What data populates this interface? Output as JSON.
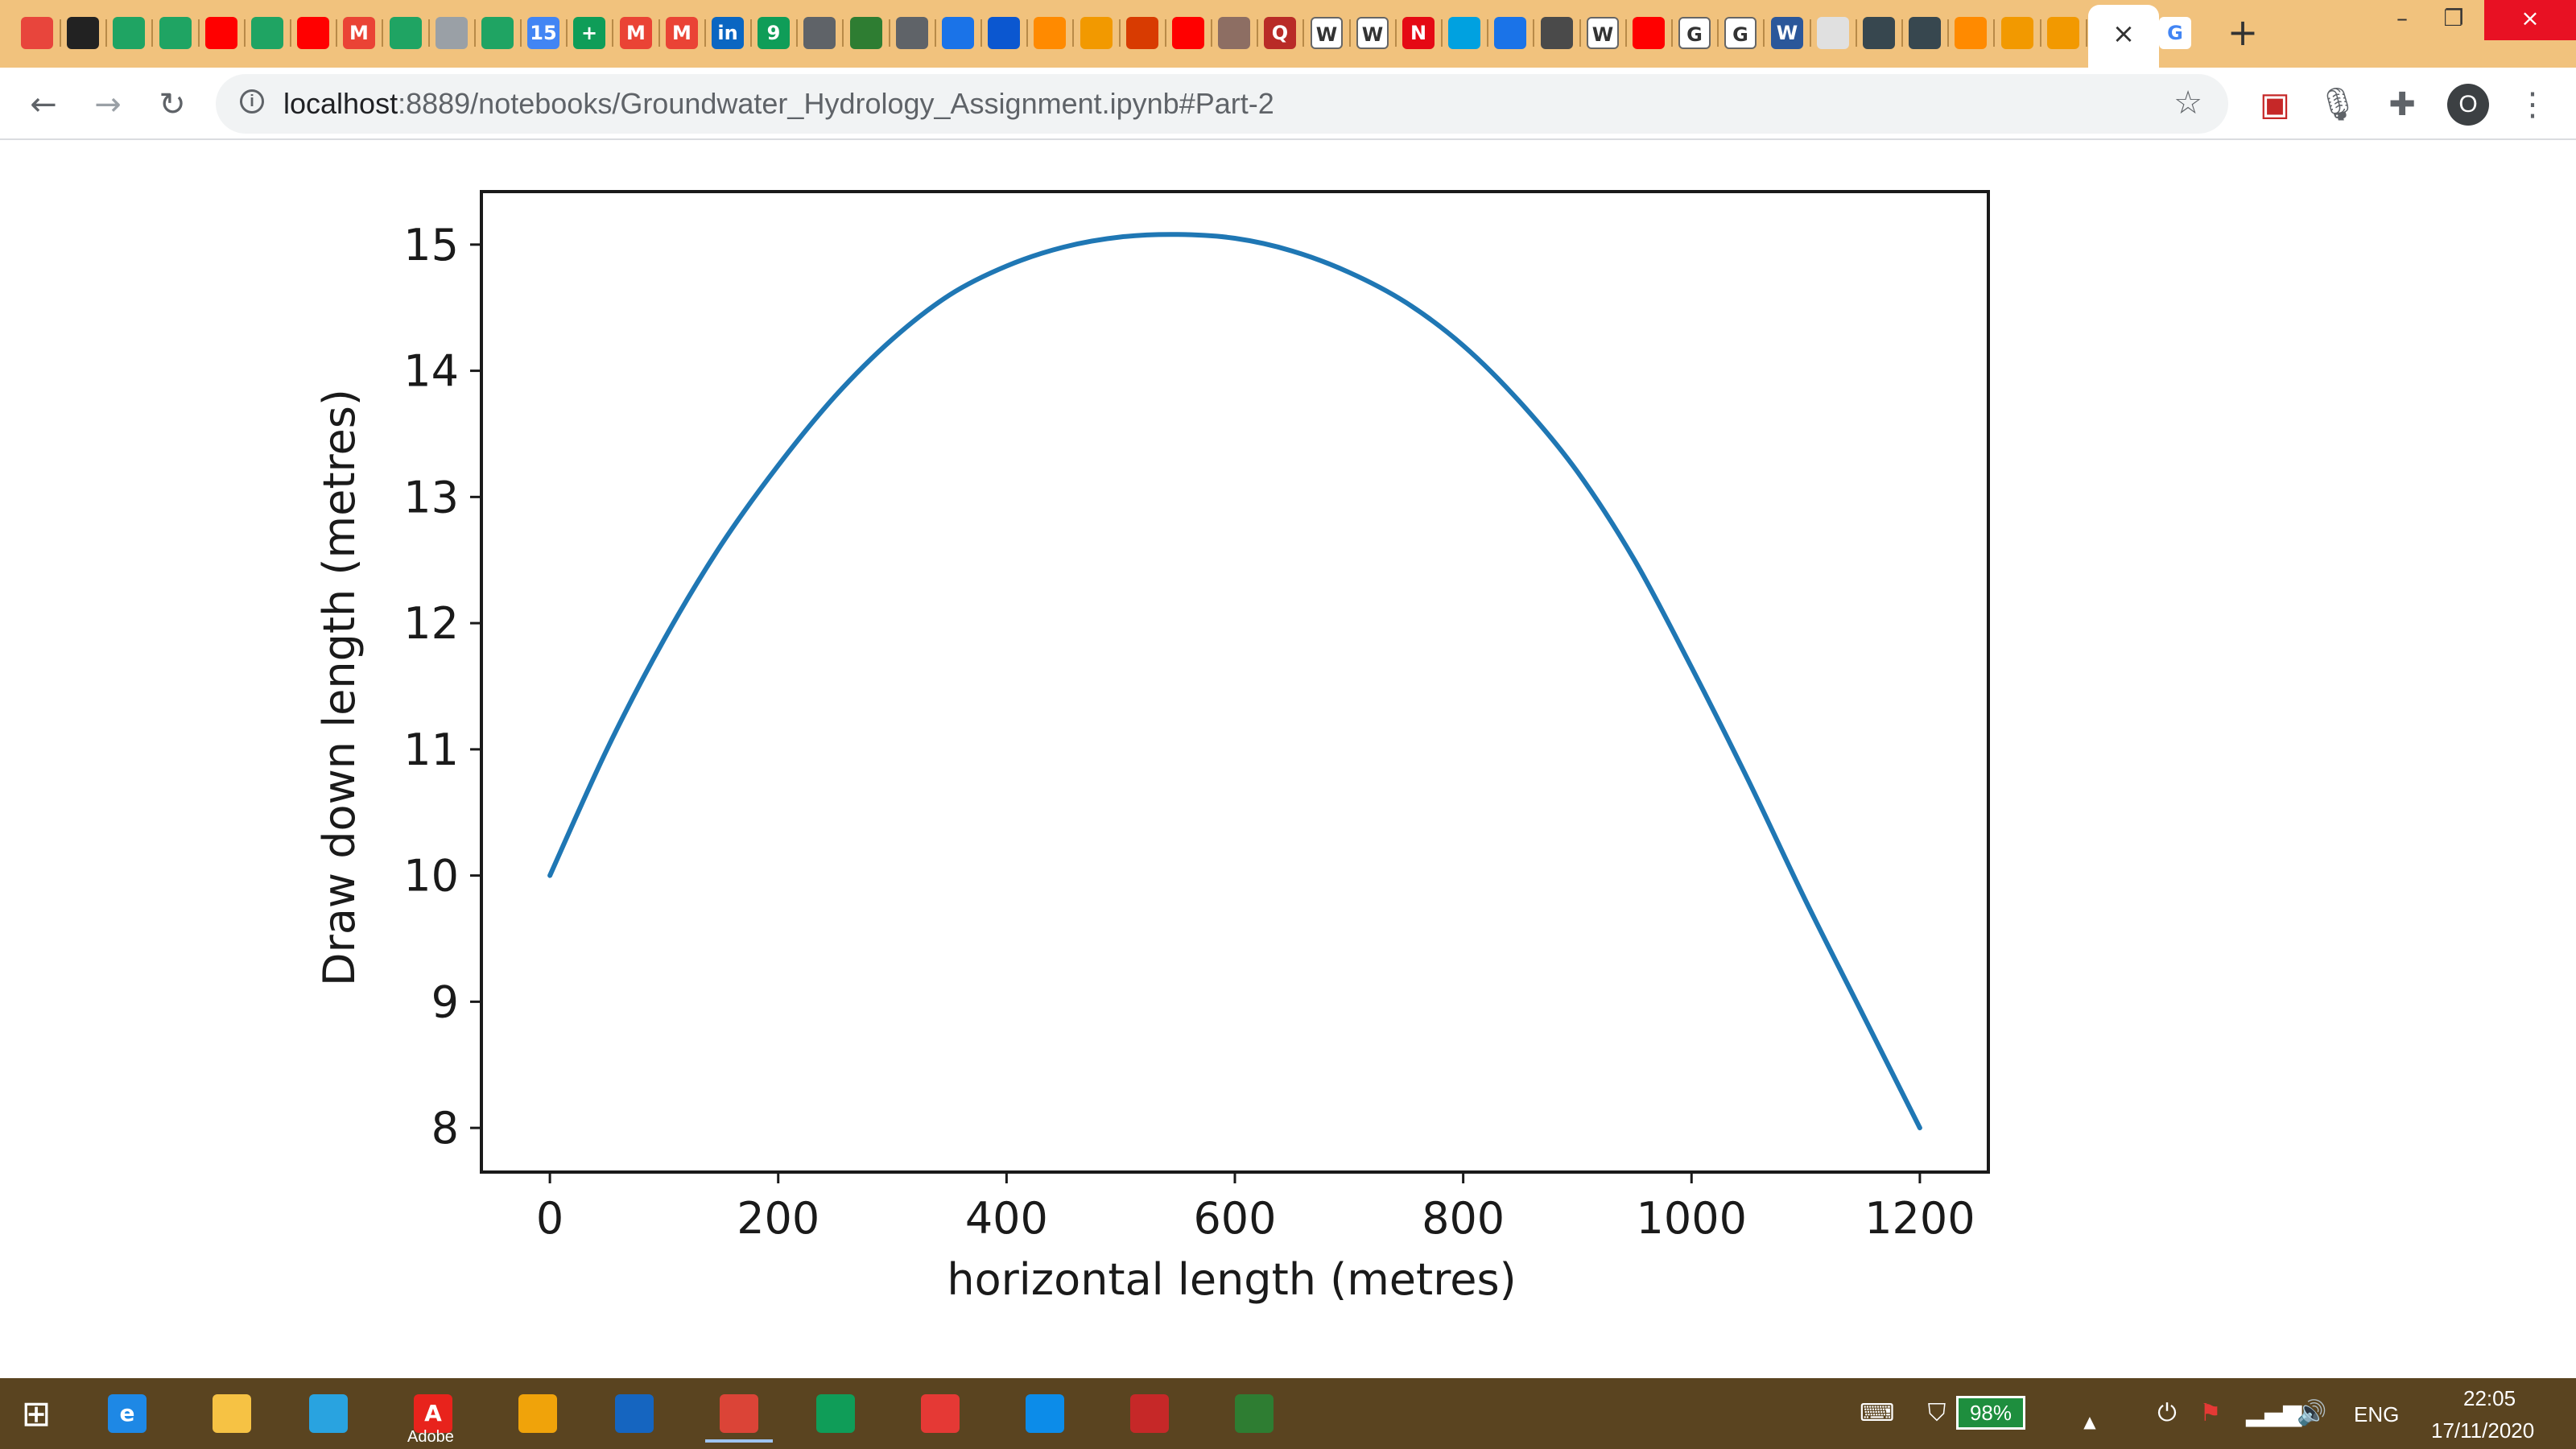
{
  "browser": {
    "active_tab": {
      "close_label": "×",
      "favicon": "google-g-icon",
      "favicon_text": "G"
    },
    "new_tab_label": "+",
    "url_host": "localhost",
    "url_path": ":8889/notebooks/Groundwater_Hydrology_Assignment.ipynb#Part-2",
    "profile_initial": "O",
    "window_controls": {
      "minimize": "–",
      "restore": "❐",
      "close": "×"
    },
    "tabs": [
      {
        "icon": "miro-icon",
        "text": "",
        "color": "#e8453c"
      },
      {
        "icon": "contact-card-icon",
        "text": "",
        "color": "#222222"
      },
      {
        "icon": "google-drive-icon",
        "text": "",
        "color": "#1fa463"
      },
      {
        "icon": "google-drive-icon",
        "text": "",
        "color": "#1fa463"
      },
      {
        "icon": "youtube-icon",
        "text": "",
        "color": "#ff0000"
      },
      {
        "icon": "google-drive-icon",
        "text": "",
        "color": "#1fa463"
      },
      {
        "icon": "youtube-icon",
        "text": "",
        "color": "#ff0000"
      },
      {
        "icon": "gmail-icon",
        "text": "M",
        "color": "#ea4335"
      },
      {
        "icon": "google-drive-icon",
        "text": "",
        "color": "#1fa463"
      },
      {
        "icon": "circle-logo-icon",
        "text": "",
        "color": "#9aa0a6"
      },
      {
        "icon": "google-drive-icon",
        "text": "",
        "color": "#1fa463"
      },
      {
        "icon": "google-calendar-icon",
        "text": "15",
        "color": "#4285f4"
      },
      {
        "icon": "google-sheets-icon",
        "text": "+",
        "color": "#0f9d58"
      },
      {
        "icon": "gmail-icon",
        "text": "M",
        "color": "#ea4335"
      },
      {
        "icon": "gmail-icon",
        "text": "M",
        "color": "#ea4335"
      },
      {
        "icon": "linkedin-icon",
        "text": "in",
        "color": "#0a66c2"
      },
      {
        "icon": "nine-badge-icon",
        "text": "9",
        "color": "#0f9d58"
      },
      {
        "icon": "globe-icon",
        "text": "",
        "color": "#5f6368"
      },
      {
        "icon": "chart-icon",
        "text": "",
        "color": "#2e7d32"
      },
      {
        "icon": "globe-icon",
        "text": "",
        "color": "#5f6368"
      },
      {
        "icon": "reader-icon",
        "text": "",
        "color": "#1a73e8"
      },
      {
        "icon": "play-circle-icon",
        "text": "",
        "color": "#0b57d0"
      },
      {
        "icon": "loading-arc-icon",
        "text": "",
        "color": "#ff8a00"
      },
      {
        "icon": "book-icon",
        "text": "",
        "color": "#f29900"
      },
      {
        "icon": "office-icon",
        "text": "",
        "color": "#d83b01"
      },
      {
        "icon": "youtube-icon",
        "text": "",
        "color": "#ff0000"
      },
      {
        "icon": "crest-icon",
        "text": "",
        "color": "#8d6e63"
      },
      {
        "icon": "quora-icon",
        "text": "Q",
        "color": "#b92b27"
      },
      {
        "icon": "wikipedia-icon",
        "text": "W",
        "color": "#ffffff"
      },
      {
        "icon": "wikipedia-icon",
        "text": "W",
        "color": "#ffffff"
      },
      {
        "icon": "netflix-icon",
        "text": "N",
        "color": "#e50914"
      },
      {
        "icon": "play-circle-icon",
        "text": "",
        "color": "#00a1e0"
      },
      {
        "icon": "document-icon",
        "text": "",
        "color": "#1a73e8"
      },
      {
        "icon": "crown-icon",
        "text": "",
        "color": "#4a4a4a"
      },
      {
        "icon": "wikipedia-icon",
        "text": "W",
        "color": "#ffffff"
      },
      {
        "icon": "youtube-icon",
        "text": "",
        "color": "#ff0000"
      },
      {
        "icon": "google-g-icon",
        "text": "G",
        "color": "#ffffff"
      },
      {
        "icon": "google-g-icon",
        "text": "G",
        "color": "#ffffff"
      },
      {
        "icon": "word-icon",
        "text": "W",
        "color": "#2b579a"
      },
      {
        "icon": "rainbow-icon",
        "text": "",
        "color": "#e0e0e0"
      },
      {
        "icon": "bird-icon",
        "text": "",
        "color": "#37474f"
      },
      {
        "icon": "globe-icon",
        "text": "",
        "color": "#37474f"
      },
      {
        "icon": "loading-arc-icon",
        "text": "",
        "color": "#ff8a00"
      },
      {
        "icon": "book-icon",
        "text": "",
        "color": "#f29900"
      },
      {
        "icon": "book-icon",
        "text": "",
        "color": "#f29900"
      }
    ]
  },
  "chart_data": {
    "type": "line",
    "title": "",
    "xlabel": "horizontal length (metres)",
    "ylabel": "Draw down length (metres)",
    "xlim": [
      -60,
      1260
    ],
    "ylim": [
      7.65,
      15.42
    ],
    "xticks": [
      0,
      200,
      400,
      600,
      800,
      1000,
      1200
    ],
    "yticks": [
      8,
      9,
      10,
      11,
      12,
      13,
      14,
      15
    ],
    "line_color": "#1f77b4",
    "grid": false,
    "series": [
      {
        "x": [
          0,
          50,
          100,
          150,
          200,
          250,
          300,
          350,
          400,
          450,
          500,
          550,
          600,
          650,
          700,
          750,
          800,
          850,
          900,
          950,
          1000,
          1050,
          1100,
          1150,
          1200
        ],
        "values": [
          10.0,
          11.0,
          11.87,
          12.62,
          13.25,
          13.8,
          14.25,
          14.6,
          14.83,
          14.98,
          15.06,
          15.08,
          15.05,
          14.95,
          14.78,
          14.54,
          14.2,
          13.75,
          13.2,
          12.5,
          11.65,
          10.75,
          9.8,
          8.9,
          8.0
        ]
      }
    ]
  },
  "taskbar": {
    "apps": [
      {
        "icon": "internet-explorer-icon",
        "text": "e",
        "color": "#1e88e5"
      },
      {
        "icon": "file-explorer-icon",
        "text": "",
        "color": "#f6c244"
      },
      {
        "icon": "mail-icon",
        "text": "",
        "color": "#29a3e0"
      },
      {
        "icon": "adobe-icon",
        "text": "A",
        "color": "#e8231c"
      },
      {
        "icon": "headphones-icon",
        "text": "",
        "color": "#f0a30a"
      },
      {
        "icon": "lenovo-icon",
        "text": "",
        "color": "#1565c0"
      },
      {
        "icon": "chrome-icon",
        "text": "",
        "color": "#db4437"
      },
      {
        "icon": "microsoft-store-icon",
        "text": "",
        "color": "#0f9d58"
      },
      {
        "icon": "box-3d-icon",
        "text": "",
        "color": "#e53935"
      },
      {
        "icon": "edge-icon",
        "text": "",
        "color": "#0c8ce9"
      },
      {
        "icon": "mcafee-icon",
        "text": "",
        "color": "#c62828"
      },
      {
        "icon": "refresh-ring-icon",
        "text": "",
        "color": "#2e7d32"
      }
    ],
    "adobe_label": "Adobe",
    "battery_percent": "98%",
    "language": "ENG",
    "time": "22:05",
    "date": "17/11/2020"
  }
}
